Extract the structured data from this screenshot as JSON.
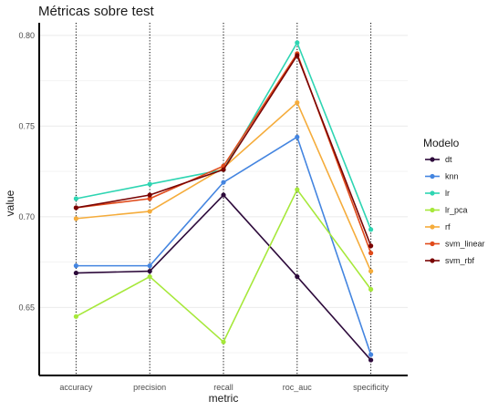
{
  "chart_data": {
    "type": "line",
    "title": "Métricas sobre test",
    "xlabel": "metric",
    "ylabel": "value",
    "categories": [
      "accuracy",
      "precision",
      "recall",
      "roc_auc",
      "specificity"
    ],
    "ylim": [
      0.6125,
      0.807
    ],
    "yticks": [
      0.65,
      0.7,
      0.75,
      0.8
    ],
    "ytick_labels": [
      "0.65",
      "0.70",
      "0.75",
      "0.80"
    ],
    "grid": true,
    "vertical_dotted_lines": true,
    "legend": {
      "title": "Modelo",
      "position": "right"
    },
    "series": [
      {
        "name": "dt",
        "color": "#2d0a3b",
        "values": [
          0.669,
          0.67,
          0.712,
          0.667,
          0.621
        ]
      },
      {
        "name": "knn",
        "color": "#4485e0",
        "values": [
          0.673,
          0.673,
          0.719,
          0.744,
          0.624
        ]
      },
      {
        "name": "lr",
        "color": "#2ed5b2",
        "values": [
          0.71,
          0.718,
          0.726,
          0.796,
          0.693
        ]
      },
      {
        "name": "lr_pca",
        "color": "#a6e83a",
        "values": [
          0.645,
          0.667,
          0.631,
          0.715,
          0.66
        ]
      },
      {
        "name": "rf",
        "color": "#f5ac3b",
        "values": [
          0.699,
          0.703,
          0.727,
          0.763,
          0.67
        ]
      },
      {
        "name": "svm_linear",
        "color": "#e04a1a",
        "values": [
          0.705,
          0.71,
          0.728,
          0.79,
          0.68
        ]
      },
      {
        "name": "svm_rbf",
        "color": "#7a0403",
        "values": [
          0.705,
          0.712,
          0.726,
          0.789,
          0.684
        ]
      }
    ]
  }
}
